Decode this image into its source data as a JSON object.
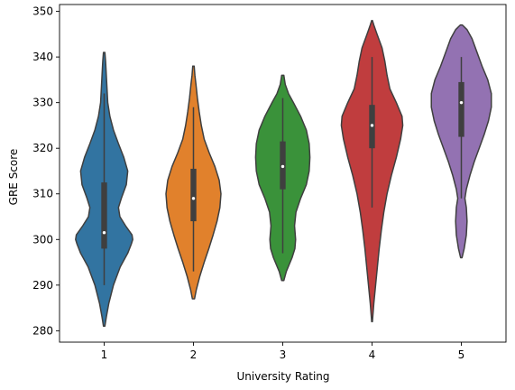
{
  "chart_data": {
    "type": "violin",
    "xlabel": "University Rating",
    "ylabel": "GRE Score",
    "categories": [
      "1",
      "2",
      "3",
      "4",
      "5"
    ],
    "ylim": [
      277.5,
      351.5
    ],
    "yticks": [
      280,
      290,
      300,
      310,
      320,
      330,
      340,
      350
    ],
    "grid": false,
    "colors": [
      "#3274a1",
      "#e1812c",
      "#3a923a",
      "#c03d3e",
      "#9372b2"
    ],
    "violins": [
      {
        "category": "1",
        "profile": [
          [
            281,
            0.02
          ],
          [
            283,
            0.06
          ],
          [
            286,
            0.13
          ],
          [
            290,
            0.26
          ],
          [
            294,
            0.45
          ],
          [
            297,
            0.66
          ],
          [
            299,
            0.76
          ],
          [
            300,
            0.8
          ],
          [
            301,
            0.78
          ],
          [
            303,
            0.6
          ],
          [
            305,
            0.44
          ],
          [
            307,
            0.4
          ],
          [
            309,
            0.48
          ],
          [
            312,
            0.62
          ],
          [
            315,
            0.66
          ],
          [
            318,
            0.55
          ],
          [
            321,
            0.4
          ],
          [
            324,
            0.26
          ],
          [
            327,
            0.16
          ],
          [
            330,
            0.1
          ],
          [
            333,
            0.08
          ],
          [
            336,
            0.06
          ],
          [
            339,
            0.04
          ],
          [
            341,
            0.02
          ]
        ],
        "q1": 298,
        "median": 301.5,
        "q3": 312.5,
        "whisker_low": 290,
        "whisker_high": 332
      },
      {
        "category": "2",
        "profile": [
          [
            287,
            0.03
          ],
          [
            289,
            0.08
          ],
          [
            292,
            0.18
          ],
          [
            295,
            0.3
          ],
          [
            298,
            0.43
          ],
          [
            301,
            0.55
          ],
          [
            304,
            0.66
          ],
          [
            307,
            0.74
          ],
          [
            310,
            0.77
          ],
          [
            313,
            0.72
          ],
          [
            316,
            0.6
          ],
          [
            319,
            0.44
          ],
          [
            322,
            0.3
          ],
          [
            325,
            0.22
          ],
          [
            328,
            0.16
          ],
          [
            331,
            0.11
          ],
          [
            334,
            0.07
          ],
          [
            336,
            0.04
          ],
          [
            338,
            0.02
          ]
        ],
        "q1": 304,
        "median": 309,
        "q3": 315.5,
        "whisker_low": 293,
        "whisker_high": 329
      },
      {
        "category": "3",
        "profile": [
          [
            291,
            0.03
          ],
          [
            293,
            0.1
          ],
          [
            296,
            0.26
          ],
          [
            298,
            0.34
          ],
          [
            300,
            0.36
          ],
          [
            303,
            0.33
          ],
          [
            306,
            0.37
          ],
          [
            309,
            0.5
          ],
          [
            312,
            0.66
          ],
          [
            315,
            0.74
          ],
          [
            318,
            0.76
          ],
          [
            321,
            0.74
          ],
          [
            324,
            0.66
          ],
          [
            327,
            0.5
          ],
          [
            330,
            0.3
          ],
          [
            332,
            0.16
          ],
          [
            334,
            0.07
          ],
          [
            336,
            0.03
          ]
        ],
        "q1": 311,
        "median": 316,
        "q3": 321.5,
        "whisker_low": 297,
        "whisker_high": 331
      },
      {
        "category": "4",
        "profile": [
          [
            282,
            0.01
          ],
          [
            286,
            0.05
          ],
          [
            290,
            0.1
          ],
          [
            294,
            0.15
          ],
          [
            298,
            0.2
          ],
          [
            302,
            0.26
          ],
          [
            306,
            0.33
          ],
          [
            310,
            0.42
          ],
          [
            314,
            0.54
          ],
          [
            318,
            0.68
          ],
          [
            322,
            0.8
          ],
          [
            325,
            0.86
          ],
          [
            327,
            0.84
          ],
          [
            330,
            0.68
          ],
          [
            333,
            0.5
          ],
          [
            336,
            0.42
          ],
          [
            339,
            0.36
          ],
          [
            342,
            0.28
          ],
          [
            345,
            0.14
          ],
          [
            347,
            0.05
          ],
          [
            348,
            0.01
          ]
        ],
        "q1": 320,
        "median": 325,
        "q3": 329.5,
        "whisker_low": 307,
        "whisker_high": 340
      },
      {
        "category": "5",
        "profile": [
          [
            296,
            0.02
          ],
          [
            298,
            0.08
          ],
          [
            301,
            0.14
          ],
          [
            304,
            0.16
          ],
          [
            307,
            0.14
          ],
          [
            309,
            0.1
          ],
          [
            311,
            0.14
          ],
          [
            314,
            0.24
          ],
          [
            317,
            0.36
          ],
          [
            320,
            0.5
          ],
          [
            323,
            0.64
          ],
          [
            326,
            0.76
          ],
          [
            329,
            0.84
          ],
          [
            332,
            0.84
          ],
          [
            335,
            0.74
          ],
          [
            338,
            0.58
          ],
          [
            341,
            0.44
          ],
          [
            344,
            0.3
          ],
          [
            346,
            0.16
          ],
          [
            347,
            0.03
          ]
        ],
        "q1": 322.5,
        "median": 330,
        "q3": 334.5,
        "whisker_low": 309,
        "whisker_high": 340
      }
    ]
  }
}
